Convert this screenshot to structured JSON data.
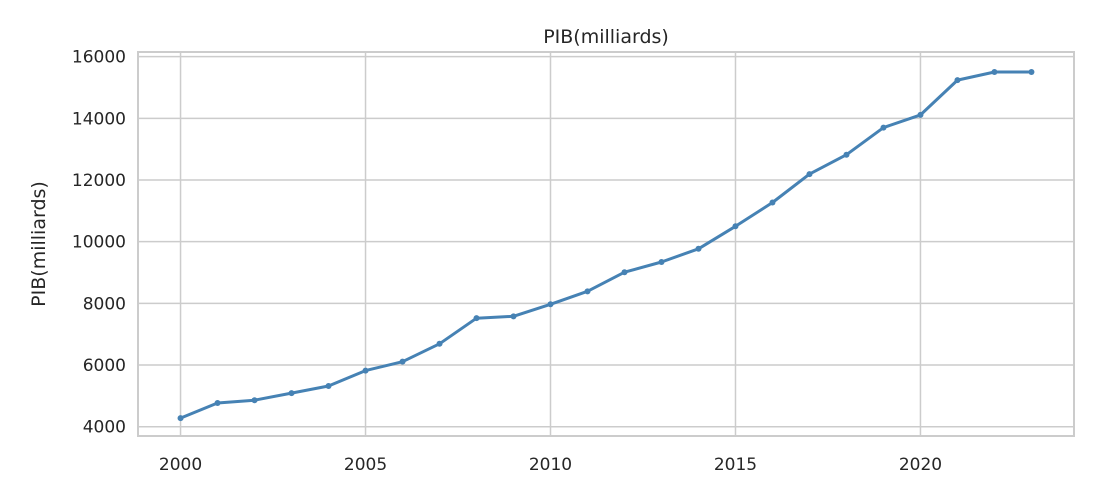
{
  "chart_data": {
    "type": "line",
    "title": "PIB(milliards)",
    "xlabel": "",
    "ylabel": "PIB(milliards)",
    "x": [
      2000,
      2001,
      2002,
      2003,
      2004,
      2005,
      2006,
      2007,
      2008,
      2009,
      2010,
      2011,
      2012,
      2013,
      2014,
      2015,
      2016,
      2017,
      2018,
      2019,
      2020,
      2021,
      2022,
      2023
    ],
    "series": [
      {
        "values": [
          4280,
          4770,
          4860,
          5090,
          5320,
          5820,
          6110,
          6690,
          7520,
          7580,
          7970,
          8390,
          9010,
          9340,
          9770,
          10500,
          11270,
          12190,
          12820,
          13700,
          14110,
          15240,
          15500,
          15500
        ],
        "color": "#4682b4"
      }
    ],
    "xticks": [
      2000,
      2005,
      2010,
      2015,
      2020
    ],
    "yticks": [
      4000,
      6000,
      8000,
      10000,
      12000,
      14000,
      16000
    ],
    "xlim": [
      1998.85,
      2024.15
    ],
    "ylim": [
      3700,
      16150
    ],
    "grid": true,
    "colors": {
      "grid": "#cccccc",
      "frame": "#cccccc",
      "text": "#262626"
    }
  }
}
